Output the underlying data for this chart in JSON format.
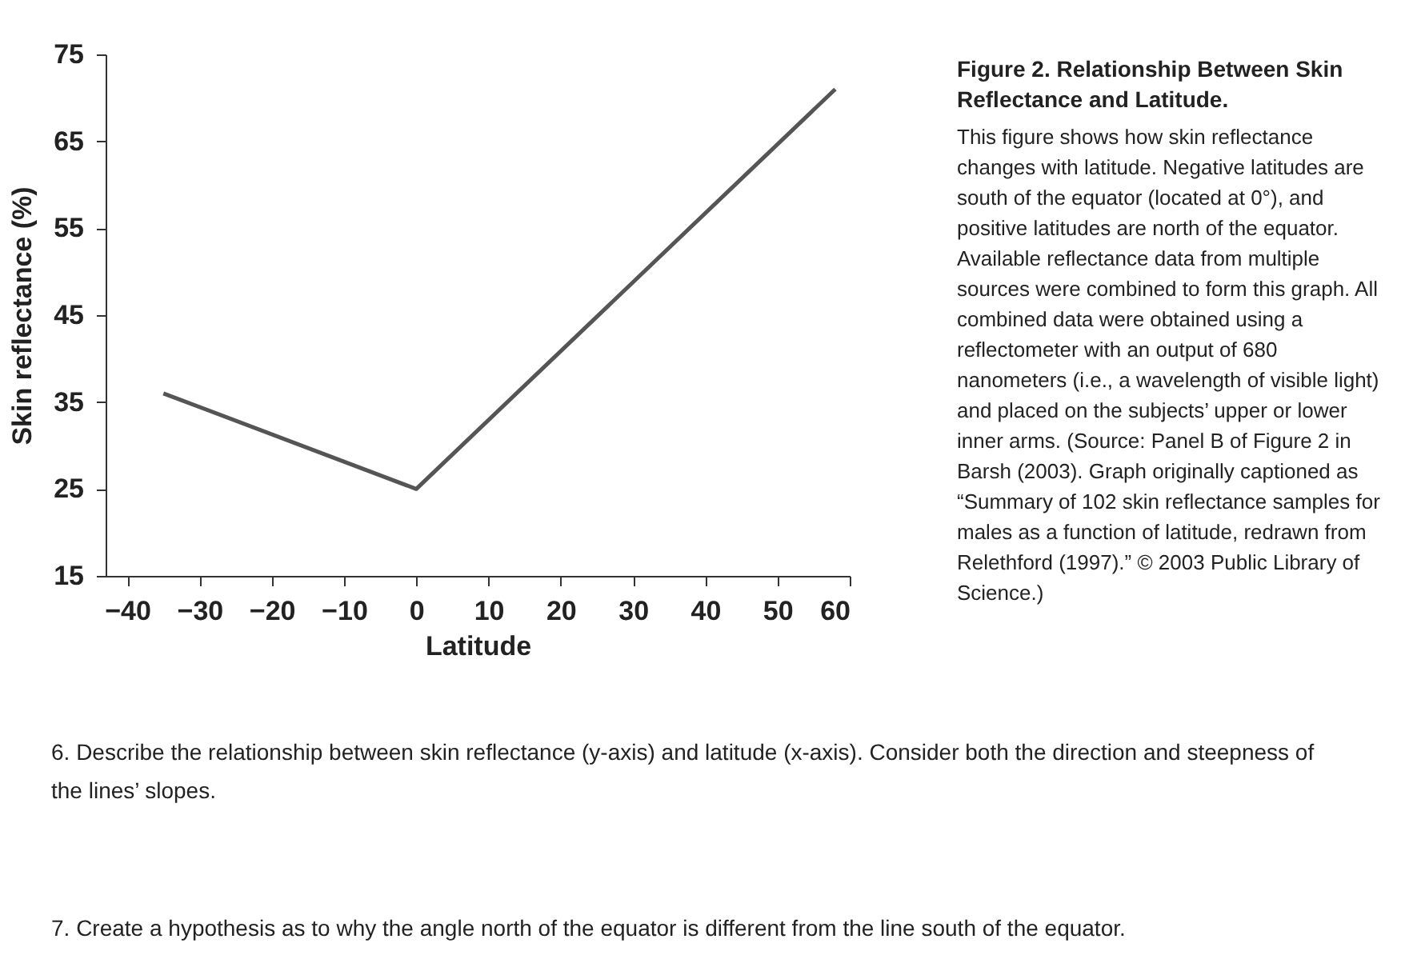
{
  "chart_data": {
    "type": "line",
    "title": "Figure 2. Relationship Between Skin Reflectance and Latitude.",
    "xlabel": "Latitude",
    "ylabel": "Skin reflectance (%)",
    "x": [
      -35,
      0,
      58
    ],
    "series": [
      {
        "color": "#555555",
        "values": [
          36,
          25,
          71
        ]
      }
    ],
    "xlim": [
      -43,
      60
    ],
    "xticks": [
      -40,
      -30,
      -20,
      -10,
      0,
      10,
      20,
      30,
      40,
      50,
      60
    ],
    "ylim": [
      15,
      75
    ],
    "yticks": [
      15,
      25,
      35,
      45,
      55,
      65,
      75
    ],
    "grid": false,
    "legend": false,
    "annotations": [
      "This figure shows how skin reflectance changes with latitude. Negative latitudes are south of the equator (located at 0°), and positive latitudes are north of the equator. Available reflectance data from multiple sources were combined to form this graph. All combined data were obtained using a reflectometer with an output of 680 nanometers (i.e., a wavelength of visible light) and placed on the subjects’ upper or lower inner arms. (Source: Panel B of Figure 2 in Barsh (2003). Graph originally captioned as “Summary of 102 skin reflectance samples for males as a function of latitude, redrawn from Relethford (1997).” © 2003 Public Library of Science.)",
      "6.  Describe the relationship between skin reflectance (y-axis) and latitude (x-axis). Consider both the direction and steepness of the lines’ slopes.",
      "7.  Create a hypothesis as to why the angle north of the equator is different from the line south of the equator."
    ]
  }
}
